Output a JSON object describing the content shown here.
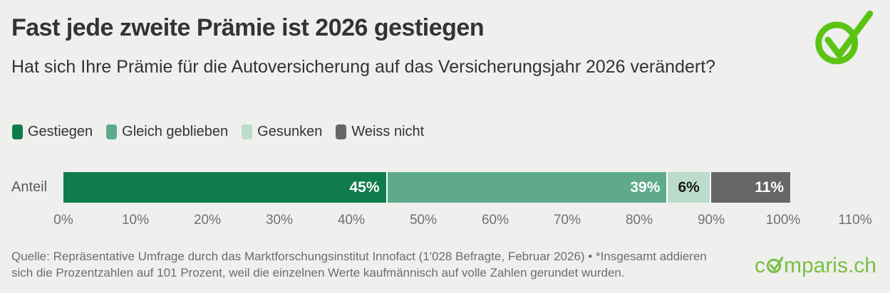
{
  "header": {
    "title": "Fast jede zweite Prämie ist 2026 gestiegen",
    "subtitle": "Hat sich Ihre Prämie für die Autoversicherung auf das Versicherungsjahr 2026 verändert?"
  },
  "legend": [
    {
      "label": "Gestiegen",
      "color": "#0e7c4b"
    },
    {
      "label": "Gleich geblieben",
      "color": "#5faa8d"
    },
    {
      "label": "Gesunken",
      "color": "#bcdccb"
    },
    {
      "label": "Weiss nicht",
      "color": "#666666"
    }
  ],
  "chart_data": {
    "type": "bar",
    "orientation": "horizontal-stacked",
    "row_label": "Anteil",
    "categories": [
      "Gestiegen",
      "Gleich geblieben",
      "Gesunken",
      "Weiss nicht"
    ],
    "values": [
      45,
      39,
      6,
      11
    ],
    "value_labels": [
      "45%",
      "39%",
      "6%",
      "11%"
    ],
    "colors": [
      "#0e7c4b",
      "#5faa8d",
      "#bcdccb",
      "#666666"
    ],
    "label_colors": [
      "#ffffff",
      "#ffffff",
      "#1a1a1a",
      "#ffffff"
    ],
    "label_align": [
      "right",
      "right",
      "center",
      "right"
    ],
    "xlim": [
      0,
      110
    ],
    "x_tick_step": 10,
    "x_tick_labels": [
      "0%",
      "10%",
      "20%",
      "30%",
      "40%",
      "50%",
      "60%",
      "70%",
      "80%",
      "90%",
      "100%",
      "110%"
    ],
    "grid": false,
    "legend_position": "top"
  },
  "footer": {
    "source": "Quelle: Repräsentative Umfrage durch das Marktforschungsinstitut Innofact (1'028 Befragte, Februar 2026) • *Insgesamt addieren sich die Prozentzahlen auf 101 Prozent, weil die einzelnen Werte kaufmännisch auf volle Zahlen gerundet wurden.",
    "brand_prefix": "c",
    "brand_suffix": "mparis.ch"
  },
  "colors": {
    "background": "#efefee",
    "title_text": "#333333",
    "axis_text": "#707070",
    "footer_text": "#6d6d6d",
    "logo_green": "#5bc413",
    "brand_green": "#78c043"
  }
}
